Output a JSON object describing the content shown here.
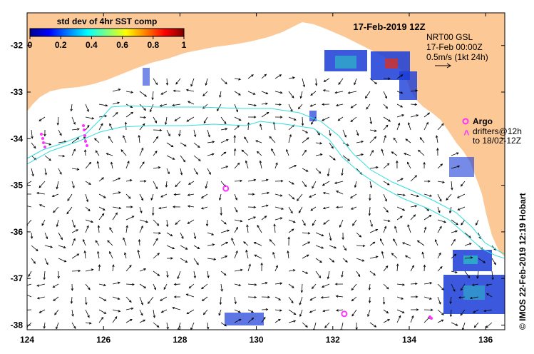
{
  "colorbar": {
    "title": "std dev of 4hr SST comp",
    "ticks": [
      "0",
      "0.2",
      "0.4",
      "0.6",
      "0.8",
      "1"
    ],
    "min": 0,
    "max": 1,
    "colormap": "jet"
  },
  "date_label": "17-Feb-2019 12Z",
  "current_info": {
    "line1": "NRT00 GSL",
    "line2": "17-Feb 00:00Z",
    "scale_text": "0.5m/s (1kt 24h)"
  },
  "argo_legend": {
    "marker_label": "Argo",
    "drifters_line1": "drifters@12h",
    "drifters_line2": "to 18/02-12Z",
    "marker_color": "#ff33ff"
  },
  "side_text": "© IMOS 22-Feb-2019 12:19 Hobart",
  "axes": {
    "x_ticks": [
      "124",
      "126",
      "128",
      "130",
      "132",
      "134",
      "136"
    ],
    "y_ticks": [
      "-32",
      "-33",
      "-34",
      "-35",
      "-36",
      "-37",
      "-38"
    ],
    "lon_range": [
      124,
      136.5
    ],
    "lat_range": [
      -38.1,
      -31.3
    ]
  },
  "colors": {
    "land": "#fbc896",
    "ocean": "#ffffff",
    "contour": "#33dddd",
    "argo": "#ff33ff",
    "vectors": "#000000"
  },
  "argo_floats": [
    {
      "lon": 129.2,
      "lat": -35.07
    },
    {
      "lon": 132.3,
      "lat": -37.76
    }
  ]
}
